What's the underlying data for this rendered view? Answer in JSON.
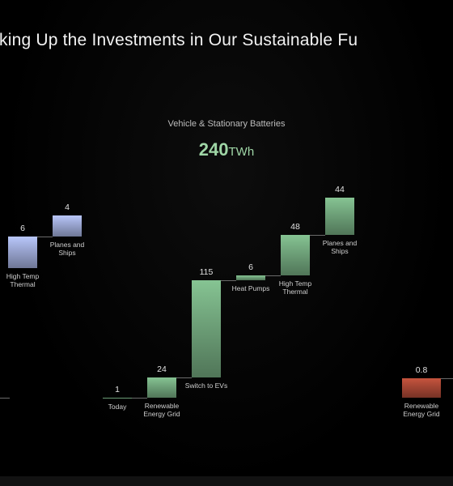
{
  "title": "king Up the Investments in Our Sustainable Fu",
  "chart_data": [
    {
      "type": "waterfall",
      "categories": [
        "High Temp Thermal",
        "Planes and Ships"
      ],
      "values": [
        6,
        4
      ],
      "color": "#b9c7fb"
    },
    {
      "type": "waterfall",
      "subtitle": "Vehicle & Stationary Batteries",
      "total": 240,
      "total_unit": "TWh",
      "categories": [
        "Today",
        "Renewable Energy Grid",
        "Switch to EVs",
        "Heat Pumps",
        "High Temp Thermal",
        "Planes and Ships"
      ],
      "values": [
        1,
        24,
        115,
        6,
        48,
        44
      ],
      "color": "#86c493"
    },
    {
      "type": "waterfall",
      "categories": [
        "Renewable Energy Grid"
      ],
      "values": [
        0.8
      ],
      "color": "#c6543e"
    }
  ]
}
